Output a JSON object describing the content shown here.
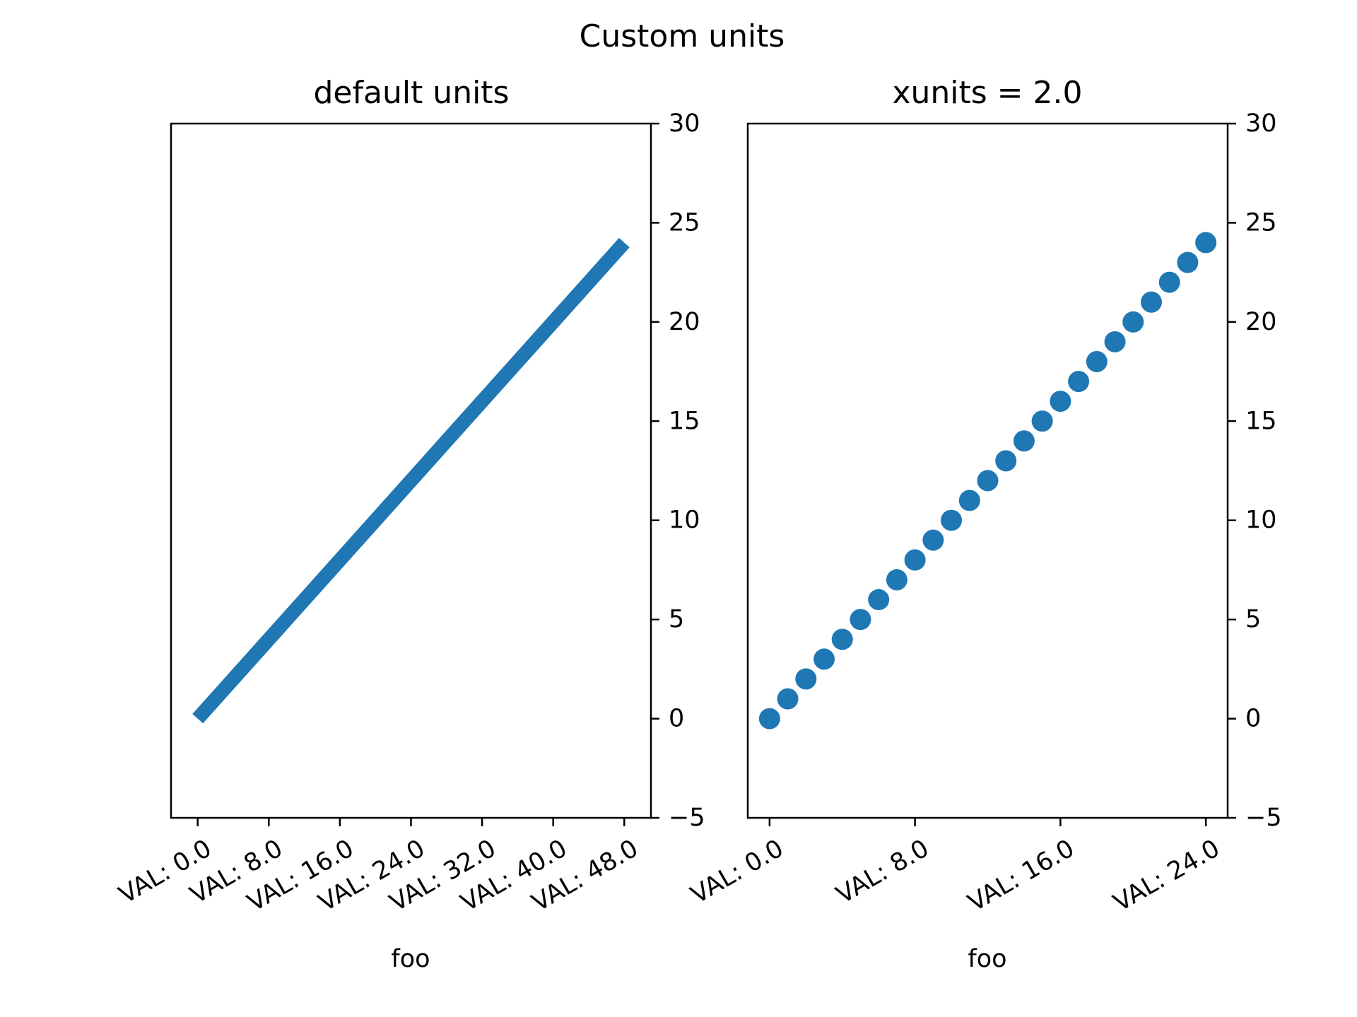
{
  "chart_data": {
    "title": "Custom units",
    "panels": [
      {
        "type": "line",
        "title": "default units",
        "xlabel": "foo",
        "ylabel": "",
        "color": "#1f77b4",
        "x": [
          0,
          48
        ],
        "y": [
          0,
          24
        ],
        "xlim": [
          -3,
          51
        ],
        "ylim": [
          -5,
          30
        ],
        "xticks": [
          0,
          8,
          16,
          24,
          32,
          40,
          48
        ],
        "xtick_labels": [
          "VAL: 0.0",
          "VAL: 8.0",
          "VAL: 16.0",
          "VAL: 24.0",
          "VAL: 32.0",
          "VAL: 40.0",
          "VAL: 48.0"
        ],
        "yticks": [
          -5,
          0,
          5,
          10,
          15,
          20,
          25,
          30
        ],
        "ytick_labels": [
          "−5",
          "0",
          "5",
          "10",
          "15",
          "20",
          "25",
          "30"
        ],
        "yaxis_side": "right",
        "grid": false
      },
      {
        "type": "scatter",
        "title": "xunits = 2.0",
        "xlabel": "foo",
        "ylabel": "",
        "color": "#1f77b4",
        "x": [
          0,
          1,
          2,
          3,
          4,
          5,
          6,
          7,
          8,
          9,
          10,
          11,
          12,
          13,
          14,
          15,
          16,
          17,
          18,
          19,
          20,
          21,
          22,
          23,
          24
        ],
        "y": [
          0,
          1,
          2,
          3,
          4,
          5,
          6,
          7,
          8,
          9,
          10,
          11,
          12,
          13,
          14,
          15,
          16,
          17,
          18,
          19,
          20,
          21,
          22,
          23,
          24
        ],
        "xlim": [
          -1.2,
          25.2
        ],
        "ylim": [
          -5,
          30
        ],
        "xticks": [
          0,
          8,
          16,
          24
        ],
        "xtick_labels": [
          "VAL: 0.0",
          "VAL: 8.0",
          "VAL: 16.0",
          "VAL: 24.0"
        ],
        "yticks": [
          -5,
          0,
          5,
          10,
          15,
          20,
          25,
          30
        ],
        "ytick_labels": [
          "−5",
          "0",
          "5",
          "10",
          "15",
          "20",
          "25",
          "30"
        ],
        "yaxis_side": "right",
        "grid": false
      }
    ]
  }
}
